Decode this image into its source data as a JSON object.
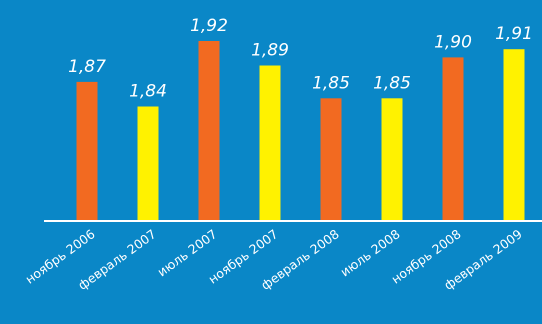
{
  "chart_data": {
    "type": "bar",
    "categories": [
      "ноябрь 2006",
      "февраль 2007",
      "июль 2007",
      "ноябрь 2007",
      "февраль 2008",
      "июль 2008",
      "ноябрь 2008",
      "февраль 2009"
    ],
    "values": [
      1.87,
      1.84,
      1.92,
      1.89,
      1.85,
      1.85,
      1.9,
      1.91
    ],
    "value_labels": [
      "1,87",
      "1,84",
      "1,92",
      "1,89",
      "1,85",
      "1,85",
      "1,90",
      "1,91"
    ],
    "ylim": [
      0,
      1.92
    ],
    "grid": false,
    "legend": "none",
    "title": "",
    "xlabel": "",
    "ylabel": ""
  },
  "colors": {
    "background": "#0a87c7",
    "bar_orange": "#f26a21",
    "bar_yellow": "#fff200",
    "axis_line": "#ffffff",
    "text": "#ffffff"
  }
}
